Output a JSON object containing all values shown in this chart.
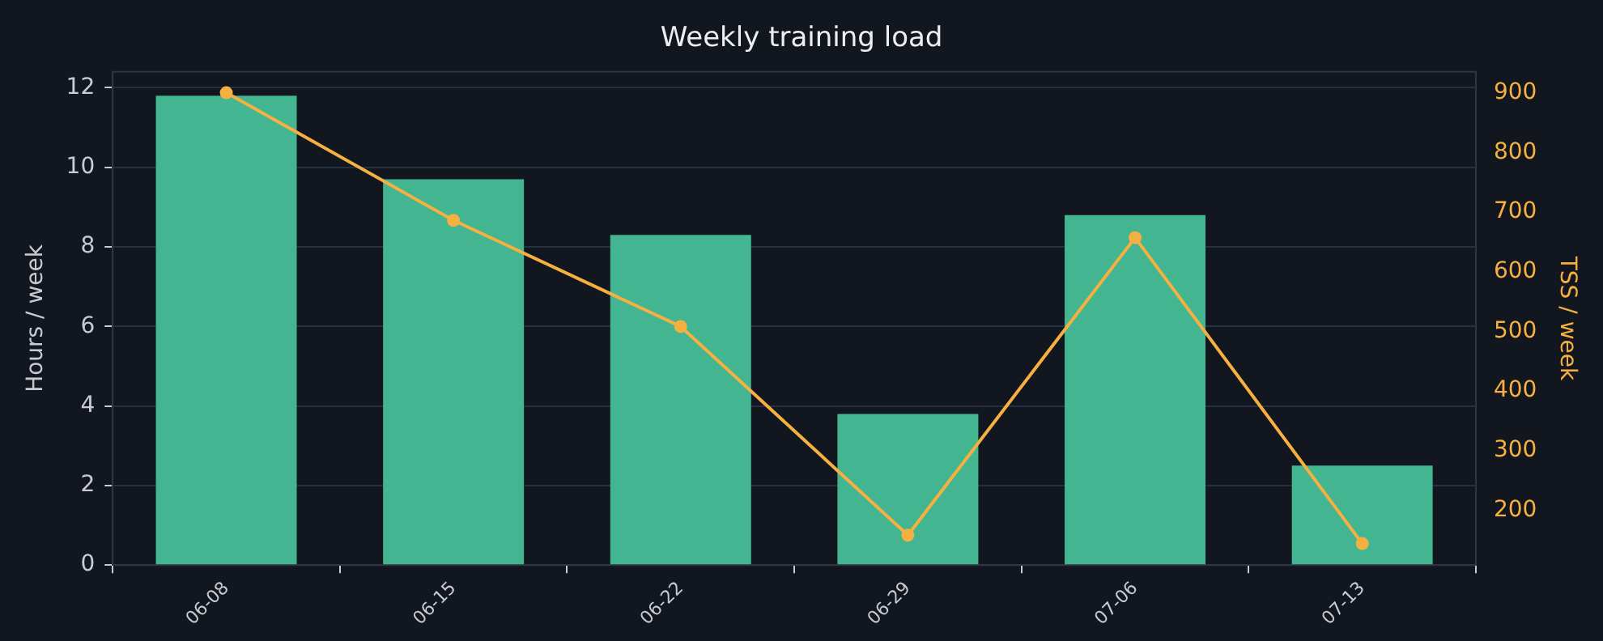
{
  "chart_data": {
    "type": "bar",
    "title": "Weekly training load",
    "ylabel": "Hours / week",
    "y2label": "TSS / week",
    "categories": [
      "06-08",
      "06-15",
      "06-22",
      "06-29",
      "07-06",
      "07-13"
    ],
    "series": [
      {
        "color": "#43b591",
        "values": [
          11.8,
          9.7,
          8.3,
          3.8,
          8.8,
          2.5
        ]
      },
      {
        "type": "line",
        "axis": "y2",
        "color": "#f5b041",
        "marker": "circle",
        "values": [
          900,
          686,
          508,
          158,
          657,
          144
        ]
      }
    ],
    "ylim": [
      0,
      12.4
    ],
    "yticks": [
      0,
      2,
      4,
      6,
      8,
      10,
      12
    ],
    "y2lim": [
      108,
      935
    ],
    "y2ticks": [
      200,
      300,
      400,
      500,
      600,
      700,
      800,
      900
    ],
    "grid": "y",
    "legend": false
  }
}
